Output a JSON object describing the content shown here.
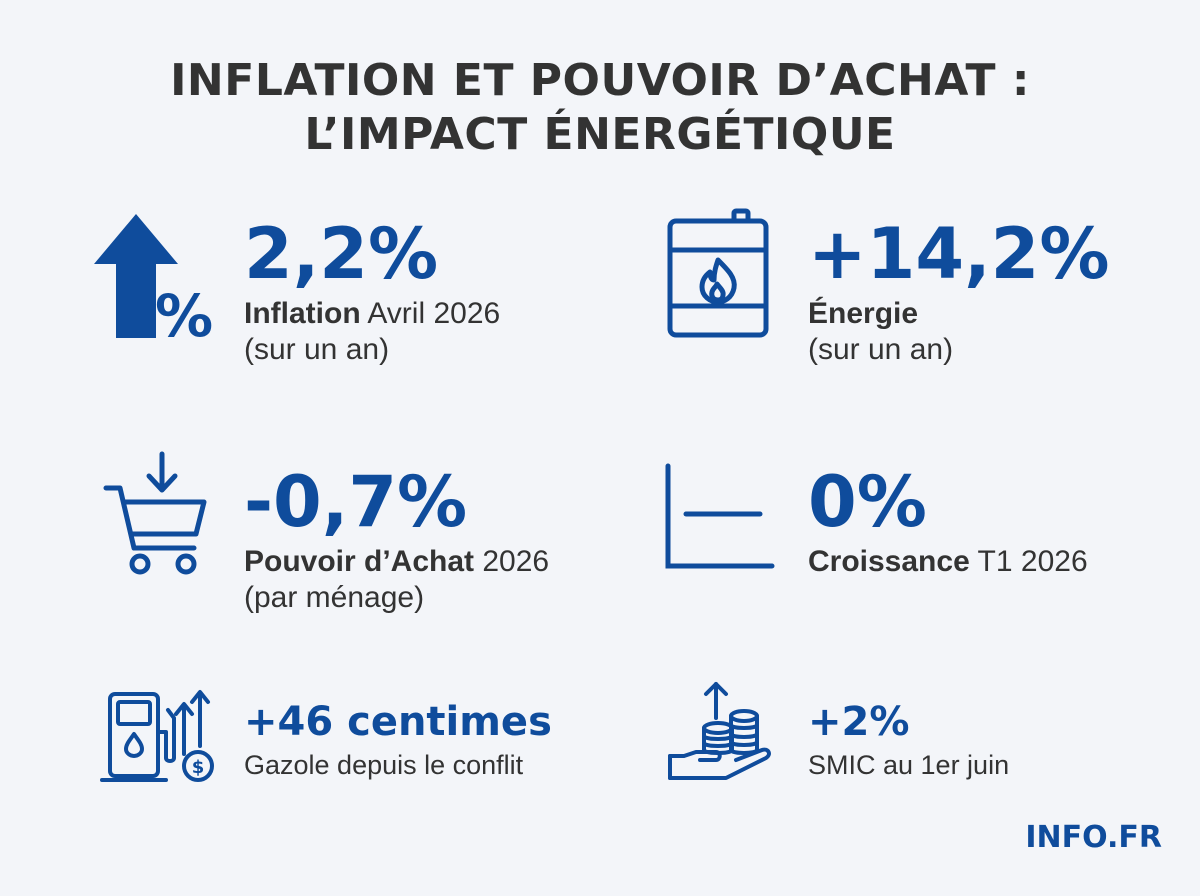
{
  "title": {
    "line1": "INFLATION ET POUVOIR D’ACHAT :",
    "line2": "L’IMPACT ÉNERGÉTIQUE"
  },
  "stats": {
    "inflation": {
      "icon": "arrow-up-percent-icon",
      "value": "2,2%",
      "label_bold": "Inflation",
      "label_rest": " Avril 2026",
      "sub": "(sur un an)"
    },
    "energy": {
      "icon": "fuel-barrel-flame-icon",
      "value": "+14,2%",
      "label_bold": "Énergie",
      "sub": "(sur un an)"
    },
    "purchasing": {
      "icon": "shopping-cart-down-icon",
      "value": "-0,7%",
      "label_bold": "Pouvoir d’Achat",
      "label_rest": " 2026",
      "sub": "(par ménage)"
    },
    "growth": {
      "icon": "flat-line-chart-icon",
      "value": "0%",
      "label_bold": "Croissance",
      "label_rest": " T1 2026"
    },
    "diesel": {
      "icon": "fuel-pump-price-up-icon",
      "value": "+46 centimes",
      "label": "Gazole depuis le conflit"
    },
    "smic": {
      "icon": "hand-coins-up-icon",
      "value": "+2%",
      "label": "SMIC au 1er juin"
    }
  },
  "brand": "INFO.FR",
  "colors": {
    "accent": "#0f4c9c",
    "text": "#333333",
    "background": "#f3f5f9"
  }
}
